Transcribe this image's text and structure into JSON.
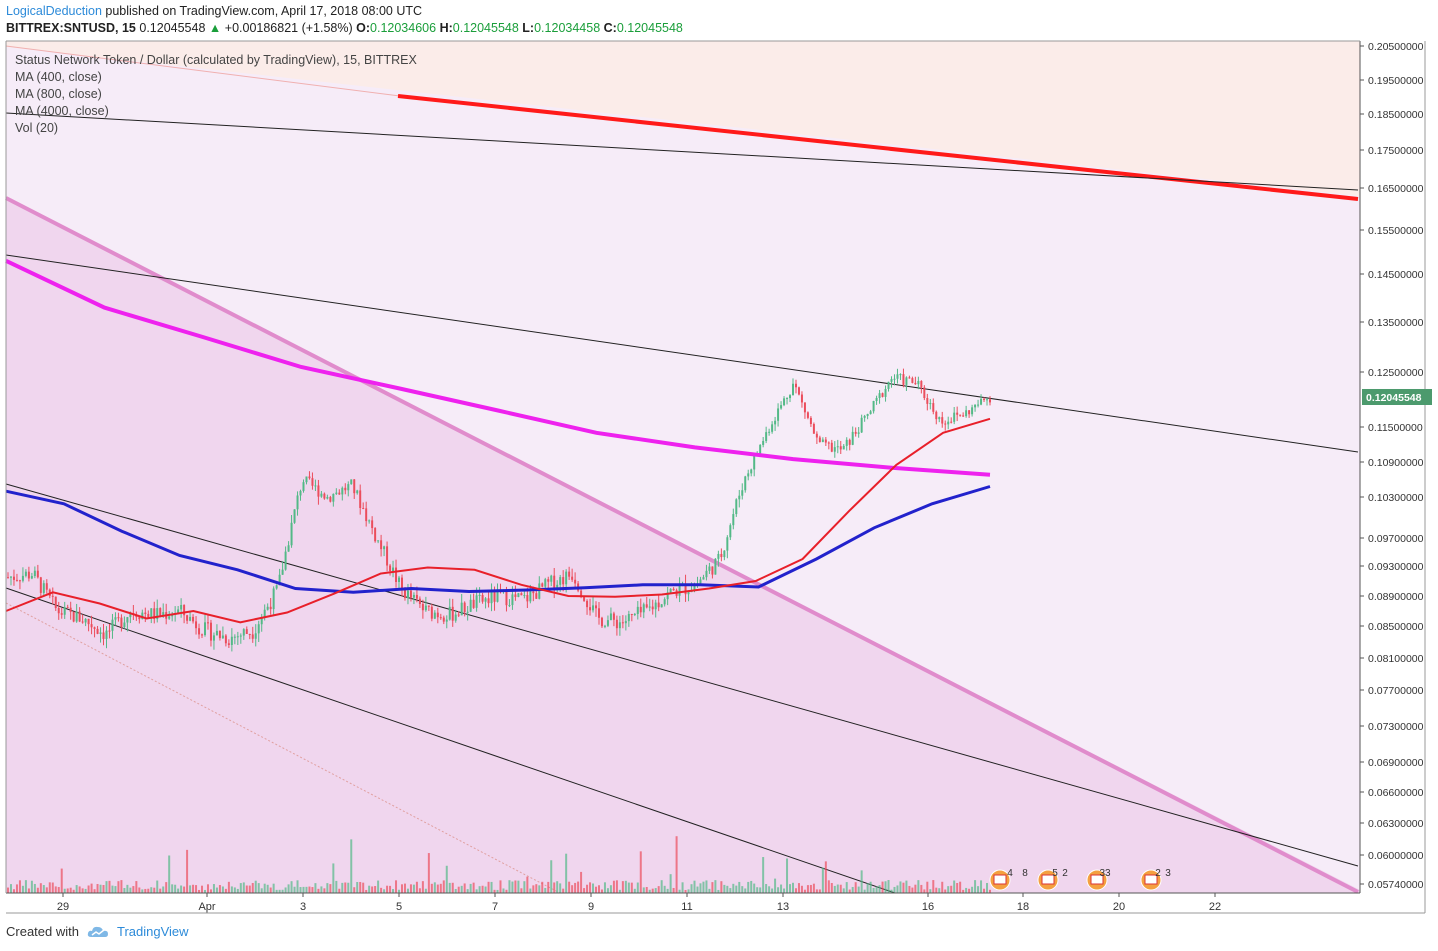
{
  "header": {
    "author": "LogicalDeduction",
    "published_text": "published on TradingView.com, April 17, 2018 08:00 UTC",
    "symbol": "BITTREX:SNTUSD, 15",
    "price": "0.12045548",
    "change_arrow": "▲",
    "change": "+0.00186821 (+1.58%)",
    "o_label": "O:",
    "o_value": "0.12034606",
    "h_label": "H:",
    "h_value": "0.12045548",
    "l_label": "L:",
    "l_value": "0.12034458",
    "c_label": "C:",
    "c_value": "0.12045548"
  },
  "legend": {
    "title": "Status Network Token / Dollar (calculated by TradingView), 15, BITTREX",
    "items": [
      "MA (400, close)",
      "MA (800, close)",
      "MA (4000, close)",
      "Vol (20)"
    ]
  },
  "footer": {
    "created_with": "Created with",
    "brand": "TradingView"
  },
  "colors": {
    "up_candle": "#53b987",
    "down_candle": "#eb4d5c",
    "ma400": "#e8202a",
    "ma800": "#2222cc",
    "ma4000": "#ee22ee",
    "wedge_line": "#e08ccc",
    "resistance": "#ff1a1a",
    "price_badge": "#4c9a6d"
  },
  "icons": [
    "calendar-event-icon"
  ],
  "chart_data": {
    "type": "candlestick",
    "symbol": "SNTUSD",
    "interval": "15",
    "last_price": 0.12045548,
    "y_axis_ticks": [
      "0.20500000",
      "0.19500000",
      "0.18500000",
      "0.17500000",
      "0.16500000",
      "0.15500000",
      "0.14500000",
      "0.13500000",
      "0.12500000",
      "0.11500000",
      "0.10900000",
      "0.10300000",
      "0.09700000",
      "0.09300000",
      "0.08900000",
      "0.08500000",
      "0.08100000",
      "0.07700000",
      "0.07300000",
      "0.06900000",
      "0.06600000",
      "0.06300000",
      "0.06000000",
      "0.05740000"
    ],
    "x_axis_ticks": [
      "29",
      "Apr",
      "3",
      "5",
      "7",
      "9",
      "11",
      "13",
      "16",
      "18",
      "20",
      "22"
    ],
    "price_path": [
      {
        "x": 0,
        "y": 0.0915
      },
      {
        "x": 1,
        "y": 0.092
      },
      {
        "x": 2,
        "y": 0.087
      },
      {
        "x": 3,
        "y": 0.086
      },
      {
        "x": 4,
        "y": 0.084
      },
      {
        "x": 5,
        "y": 0.087
      },
      {
        "x": 6,
        "y": 0.0865
      },
      {
        "x": 7,
        "y": 0.087
      },
      {
        "x": 8,
        "y": 0.0845
      },
      {
        "x": 9,
        "y": 0.0835
      },
      {
        "x": 10,
        "y": 0.0845
      },
      {
        "x": 11,
        "y": 0.09
      },
      {
        "x": 12,
        "y": 0.106
      },
      {
        "x": 13,
        "y": 0.103
      },
      {
        "x": 14,
        "y": 0.105
      },
      {
        "x": 15,
        "y": 0.097
      },
      {
        "x": 16,
        "y": 0.09
      },
      {
        "x": 17,
        "y": 0.087
      },
      {
        "x": 18,
        "y": 0.0865
      },
      {
        "x": 19,
        "y": 0.088
      },
      {
        "x": 20,
        "y": 0.089
      },
      {
        "x": 21,
        "y": 0.0885
      },
      {
        "x": 22,
        "y": 0.0905
      },
      {
        "x": 23,
        "y": 0.092
      },
      {
        "x": 24,
        "y": 0.086
      },
      {
        "x": 25,
        "y": 0.0855
      },
      {
        "x": 26,
        "y": 0.087
      },
      {
        "x": 27,
        "y": 0.0895
      },
      {
        "x": 28,
        "y": 0.0905
      },
      {
        "x": 29,
        "y": 0.094
      },
      {
        "x": 30,
        "y": 0.106
      },
      {
        "x": 31,
        "y": 0.115
      },
      {
        "x": 32,
        "y": 0.123
      },
      {
        "x": 33,
        "y": 0.112
      },
      {
        "x": 34,
        "y": 0.111
      },
      {
        "x": 35,
        "y": 0.117
      },
      {
        "x": 36,
        "y": 0.124
      },
      {
        "x": 37,
        "y": 0.123
      },
      {
        "x": 38,
        "y": 0.116
      },
      {
        "x": 39,
        "y": 0.1175
      },
      {
        "x": 40,
        "y": 0.1205
      }
    ],
    "ma400": [
      0.087,
      0.0895,
      0.088,
      0.086,
      0.087,
      0.0855,
      0.0868,
      0.0893,
      0.092,
      0.0928,
      0.0925,
      0.0905,
      0.089,
      0.0889,
      0.0892,
      0.09,
      0.091,
      0.094,
      0.101,
      0.1085,
      0.114,
      0.1165
    ],
    "ma800": [
      0.104,
      0.102,
      0.098,
      0.0945,
      0.0925,
      0.09,
      0.0895,
      0.09,
      0.0896,
      0.0898,
      0.0901,
      0.0905,
      0.0905,
      0.0902,
      0.094,
      0.0985,
      0.102,
      0.1048
    ],
    "ma4000": [
      0.148,
      0.138,
      0.132,
      0.126,
      0.122,
      0.118,
      0.114,
      0.1115,
      0.1095,
      0.108,
      0.1068
    ],
    "events_labels": [
      "4",
      "8",
      "5",
      "2",
      "33",
      "2",
      "3"
    ],
    "grid": false,
    "legend_position": "top-left"
  }
}
